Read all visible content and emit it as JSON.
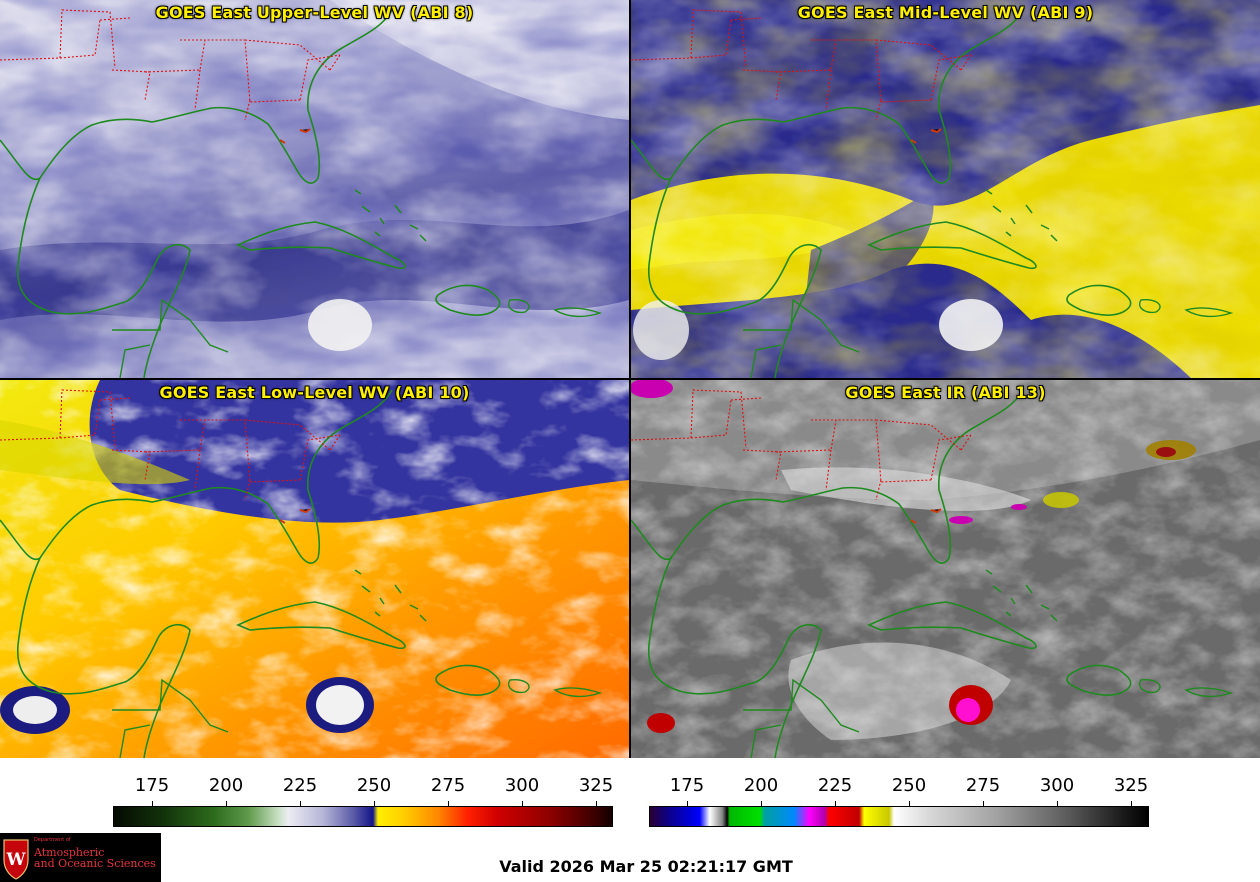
{
  "panels": [
    {
      "title": "GOES East Upper-Level WV (ABI 8)"
    },
    {
      "title": "GOES East Mid-Level WV (ABI 9)"
    },
    {
      "title": "GOES East Low-Level WV (ABI 10)"
    },
    {
      "title": "GOES East IR (ABI 13)"
    }
  ],
  "colorbars": {
    "wv": {
      "ticks": [
        "175",
        "200",
        "225",
        "250",
        "275",
        "300",
        "325"
      ]
    },
    "ir": {
      "ticks": [
        "175",
        "200",
        "225",
        "250",
        "275",
        "300",
        "325"
      ]
    }
  },
  "logo": {
    "small": "Department of",
    "line1": "Atmospheric",
    "line2": "and Oceanic Sciences"
  },
  "valid_time": "Valid 2026 Mar 25 02:21:17 GMT",
  "colors": {
    "coastline": "#1f8a1f",
    "state_borders": "#e01010",
    "title_text": "#ffef00"
  }
}
